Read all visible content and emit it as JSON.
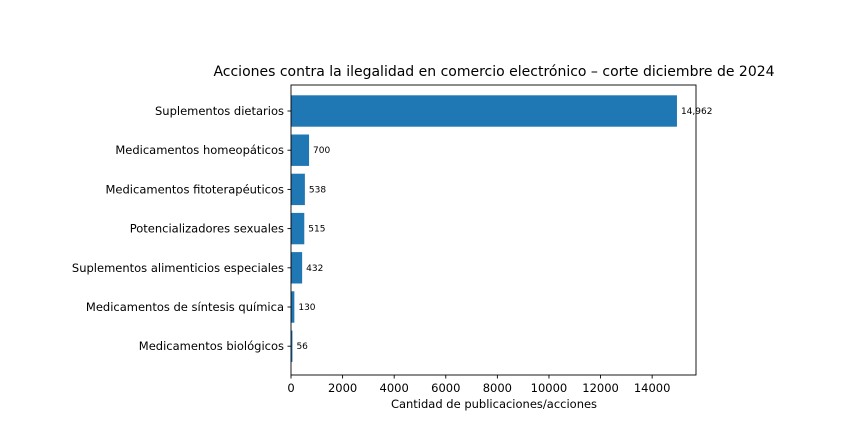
{
  "chart_data": {
    "type": "bar",
    "orientation": "horizontal",
    "title": "Acciones contra la ilegalidad en comercio electrónico – corte diciembre de 2024",
    "xlabel": "Cantidad de publicaciones/acciones",
    "ylabel": "",
    "categories": [
      "Suplementos dietarios",
      "Medicamentos homeopáticos",
      "Medicamentos fitoterapéuticos",
      "Potencializadores sexuales",
      "Suplementos alimenticios especiales",
      "Medicamentos de síntesis química",
      "Medicamentos biológicos"
    ],
    "values": [
      14962,
      700,
      538,
      515,
      432,
      130,
      56
    ],
    "data_labels": [
      "14,962",
      "700",
      "538",
      "515",
      "432",
      "130",
      "56"
    ],
    "xlim": [
      0,
      15700
    ],
    "xticks": [
      0,
      2000,
      4000,
      6000,
      8000,
      10000,
      12000,
      14000
    ],
    "xtick_labels": [
      "0",
      "2000",
      "4000",
      "6000",
      "8000",
      "10000",
      "12000",
      "14000"
    ],
    "grid": false,
    "bar_color": "#1f77b4"
  }
}
